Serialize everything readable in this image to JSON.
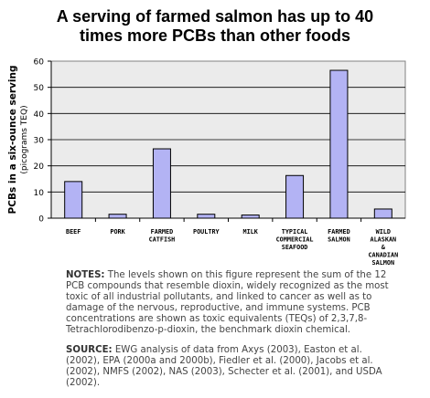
{
  "title_line1": "A serving of farmed salmon has up to 40",
  "title_line2": "times more PCBs than other foods",
  "chart_data": {
    "type": "bar",
    "title": "A serving of farmed salmon has up to 40 times more PCBs than other foods",
    "ylabel_line1": "PCBs in a six-ounce serving",
    "ylabel_line2": "(picograms TEQ)",
    "ylim": [
      0,
      60
    ],
    "yticks": [
      0,
      10,
      20,
      30,
      40,
      50,
      60
    ],
    "grid": true,
    "categories": [
      [
        "BEEF"
      ],
      [
        "PORK"
      ],
      [
        "FARMED",
        "CATFISH"
      ],
      [
        "POULTRY"
      ],
      [
        "MILK"
      ],
      [
        "TYPICAL",
        "COMMERCIAL",
        "SEAFOOD"
      ],
      [
        "FARMED",
        "SALMON"
      ],
      [
        "WILD",
        "ALASKAN",
        "&",
        "CANADIAN",
        "SALMON"
      ]
    ],
    "values": [
      14,
      1.5,
      26.5,
      1.5,
      1.2,
      16.3,
      56.5,
      3.5
    ],
    "bar_color": "#b3b3f4",
    "bar_stroke": "#000000",
    "plot_bg": "#ebebeb"
  },
  "notes": {
    "notes_label": "NOTES:",
    "notes_text": " The levels shown on this figure represent the sum of the 12 PCB compounds that resemble dioxin, widely recognized as the most toxic of all industrial pollutants, and linked to cancer as well as to damage of the nervous, reproductive, and immune systems. PCB concentrations are shown as toxic equivalents (TEQs) of 2,3,7,8-Tetrachlorodibenzo-p-dioxin, the benchmark dioxin chemical.",
    "source_label": "SOURCE:",
    "source_text": "  EWG analysis of data from Axys (2003), Easton et al. (2002), EPA (2000a and 2000b), Fiedler et al. (2000), Jacobs et al. (2002), NMFS (2002), NAS (2003), Schecter et al. (2001), and USDA (2002)."
  }
}
